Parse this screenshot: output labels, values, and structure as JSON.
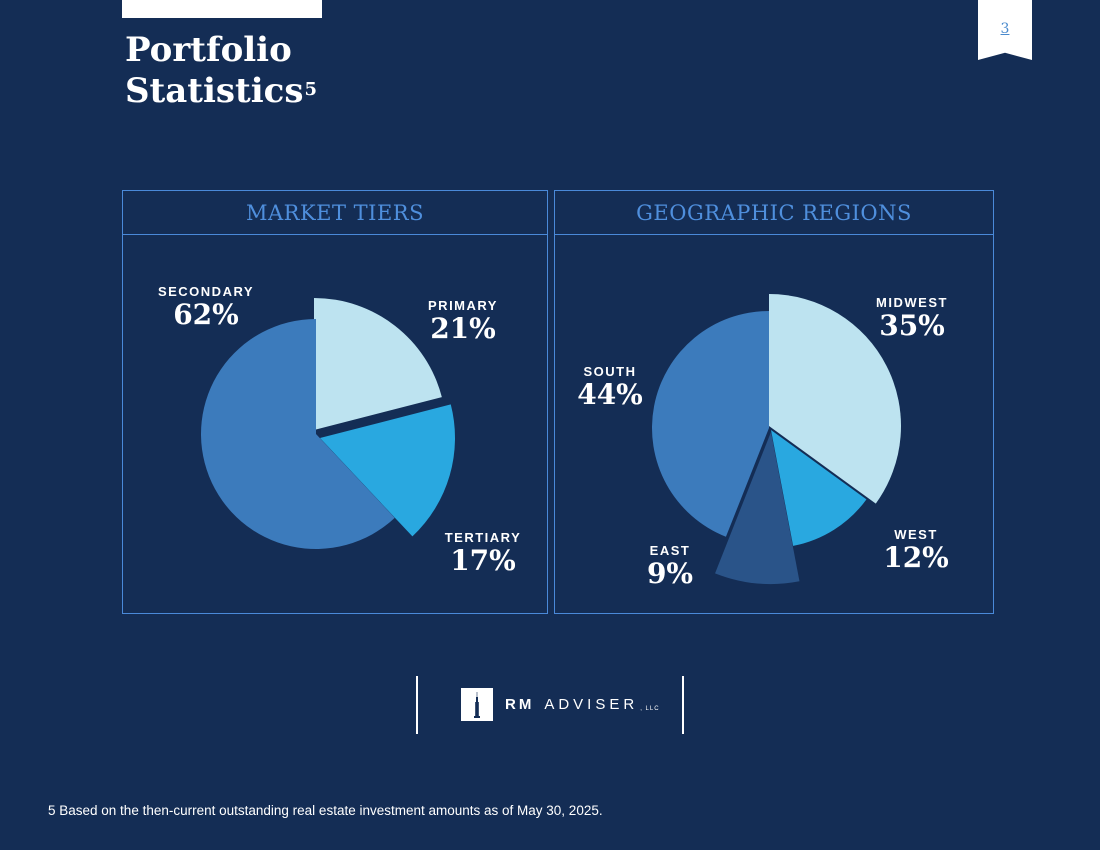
{
  "page": {
    "title_line1": "Portfolio",
    "title_line2": "Statistics",
    "title_superscript": "5",
    "page_number": "3"
  },
  "colors": {
    "background": "#142d55",
    "panel_border": "#4a89d9",
    "header_text": "#4f8fdd",
    "slice_light": "#bde3f0",
    "slice_bright": "#29a8e0",
    "slice_mid": "#3c7bbc",
    "slice_dark": "#2a5489"
  },
  "chart_data": [
    {
      "type": "pie",
      "title": "MARKET TIERS",
      "slices": [
        {
          "label": "PRIMARY",
          "value": 21,
          "display": "21%",
          "color": "#bde3f0"
        },
        {
          "label": "TERTIARY",
          "value": 17,
          "display": "17%",
          "color": "#29a8e0"
        },
        {
          "label": "SECONDARY",
          "value": 62,
          "display": "62%",
          "color": "#3c7bbc"
        }
      ]
    },
    {
      "type": "pie",
      "title": "GEOGRAPHIC REGIONS",
      "slices": [
        {
          "label": "MIDWEST",
          "value": 35,
          "display": "35%",
          "color": "#bde3f0"
        },
        {
          "label": "WEST",
          "value": 12,
          "display": "12%",
          "color": "#29a8e0"
        },
        {
          "label": "EAST",
          "value": 9,
          "display": "9%",
          "color": "#2a5489"
        },
        {
          "label": "SOUTH",
          "value": 44,
          "display": "44%",
          "color": "#3c7bbc"
        }
      ]
    }
  ],
  "logo": {
    "name_bold": "RM",
    "name_light": "ADVISER",
    "suffix": ", LLC",
    "icon": "building-tower-icon"
  },
  "footnote": "5 Based on the then-current outstanding real estate investment amounts as of May 30, 2025."
}
